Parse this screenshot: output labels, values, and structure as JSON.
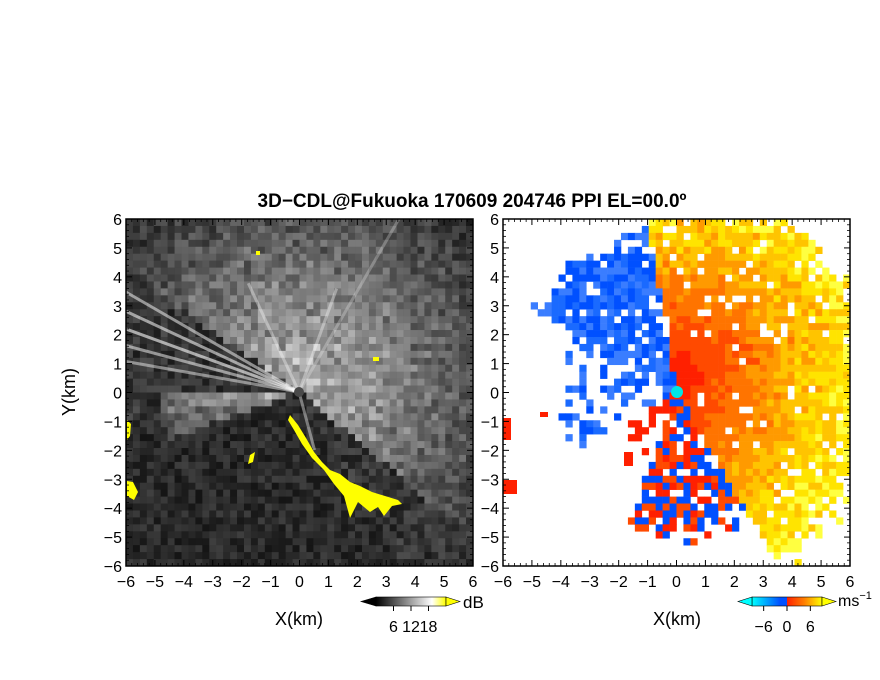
{
  "chart_data": {
    "title": "3D−CDL@Fukuoka 170609 204746 PPI EL=00.0º",
    "panels": [
      {
        "type": "heatmap",
        "quantity": "backscatter intensity",
        "xlabel": "X(km)",
        "ylabel": "Y(km)",
        "xlim": [
          -6,
          6
        ],
        "ylim": [
          -6,
          6
        ],
        "xticks": [
          "−6",
          "−5",
          "−4",
          "−3",
          "−2",
          "−1",
          "0",
          "1",
          "2",
          "3",
          "4",
          "5",
          "6"
        ],
        "yticks": [
          "6",
          "5",
          "4",
          "3",
          "2",
          "1",
          "0",
          "−1",
          "−2",
          "−3",
          "−4",
          "−5",
          "−6"
        ],
        "colorbar": {
          "unit": "dB",
          "ticks": [
            "6",
            "12",
            "18"
          ],
          "tick_values": [
            6,
            12,
            18
          ],
          "range": [
            0,
            24
          ],
          "colors": [
            "#000000",
            "#ffffff",
            "#ffff00"
          ]
        }
      },
      {
        "type": "heatmap",
        "quantity": "radial velocity",
        "xlabel": "X(km)",
        "ylabel": "",
        "xlim": [
          -6,
          6
        ],
        "ylim": [
          -6,
          6
        ],
        "xticks": [
          "−6",
          "−5",
          "−4",
          "−3",
          "−2",
          "−1",
          "0",
          "1",
          "2",
          "3",
          "4",
          "5",
          "6"
        ],
        "yticks": [
          "6",
          "5",
          "4",
          "3",
          "2",
          "1",
          "0",
          "−1",
          "−2",
          "−3",
          "−4",
          "−5",
          "−6"
        ],
        "colorbar": {
          "unit": "ms",
          "unit_exp": "−1",
          "ticks": [
            "−6",
            "0",
            "6"
          ],
          "tick_values": [
            -6,
            0,
            6
          ],
          "range": [
            -9,
            9
          ],
          "colors": [
            "#00ffff",
            "#0050ff",
            "#ff2000",
            "#ff8000",
            "#ffff00"
          ]
        }
      }
    ]
  }
}
